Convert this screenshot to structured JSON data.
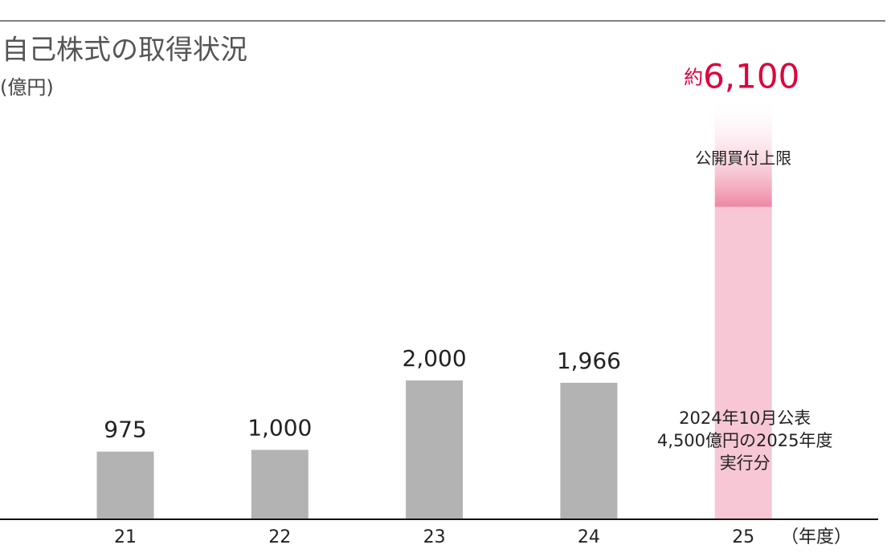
{
  "chart_data": {
    "type": "bar",
    "title": "自己株式の取得状況",
    "subtitle": "(億円)",
    "x_unit": "（年度）",
    "categories": [
      "21",
      "22",
      "23",
      "24",
      "25"
    ],
    "values": [
      975,
      1000,
      2000,
      1966,
      4500
    ],
    "value_labels": [
      "975",
      "1,000",
      "2,000",
      "1,966",
      null
    ],
    "colors": [
      "#b3b3b3",
      "#b3b3b3",
      "#b3b3b3",
      "#b3b3b3",
      "#f7c7d5"
    ],
    "tender_offer": {
      "value": 1600,
      "label": "公開買付上限",
      "color": "#ee87a4"
    },
    "total": {
      "prefix": "約",
      "value": 6100,
      "label": "6,100",
      "color": "#e0003c"
    },
    "annotation": [
      "2024年10月公表",
      "4,500億円の2025年度",
      "実行分"
    ],
    "ylim": [
      0,
      6600
    ]
  }
}
